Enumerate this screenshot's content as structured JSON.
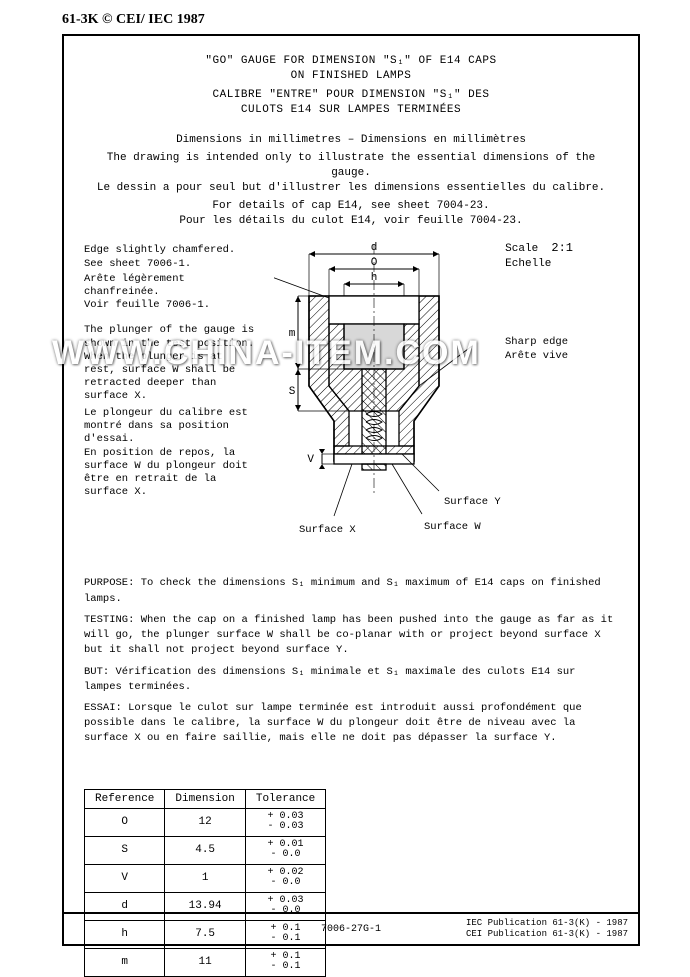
{
  "header_code": "61-3K © CEI/ IEC 1987",
  "title": {
    "en1": "\"GO\" GAUGE FOR DIMENSION \"S₁\" OF E14 CAPS",
    "en2": "ON FINISHED LAMPS",
    "fr1": "CALIBRE \"ENTRE\" POUR DIMENSION \"S₁\" DES",
    "fr2": "CULOTS E14 SUR LAMPES TERMINÉES"
  },
  "desc": {
    "dim": "Dimensions in millimetres – Dimensions en millimètres",
    "en": "The drawing is intended only to illustrate the essential dimensions of the gauge.",
    "fr": "Le dessin a pour seul but d'illustrer les dimensions essentielles du calibre.",
    "det_en": "For details of cap E14, see sheet 7004-23.",
    "det_fr": "Pour les détails du culot E14, voir feuille 7004-23."
  },
  "scale": {
    "line1": "Scale",
    "line2": "Echelle",
    "val": "2:1"
  },
  "notes": {
    "edge_en": "Edge slightly chamfered.\nSee sheet 7006-1.",
    "edge_fr": "Arête légèrement chanfreinée.\nVoir feuille 7006-1.",
    "plunger_en": "The plunger of the gauge is shown in the test position.\nWhen the plunger is at rest, surface W shall be retracted deeper than surface X.",
    "plunger_fr": "Le plongeur du calibre est montré dans sa position d'essai.\nEn position de repos, la surface W du plongeur doit être en retrait de la surface X.",
    "sharp_en": "Sharp edge",
    "sharp_fr": "Arête vive"
  },
  "surfaces": {
    "x": "Surface X",
    "w": "Surface W",
    "y": "Surface Y"
  },
  "dims": {
    "d": "d",
    "O": "O",
    "h": "h",
    "m": "m",
    "S": "S",
    "V": "V"
  },
  "purpose": {
    "p_en": "PURPOSE: To check the dimensions S₁ minimum and S₁ maximum of E14 caps on finished lamps.",
    "t_en": "TESTING: When the cap on a finished lamp has been pushed into the gauge as far as it will go, the plunger surface W shall be co-planar with or project beyond surface X but it shall not project beyond surface Y.",
    "p_fr": "BUT: Vérification des dimensions S₁ minimale et S₁ maximale des culots E14 sur lampes terminées.",
    "t_fr": "ESSAI: Lorsque le culot sur lampe terminée est introduit aussi profondément que possible dans le calibre, la surface W du plongeur doit être de niveau avec la surface X ou en faire saillie, mais elle ne doit pas dépasser la surface Y."
  },
  "table": {
    "headers": [
      "Reference",
      "Dimension",
      "Tolerance"
    ],
    "rows": [
      {
        "ref": "O",
        "dim": "12",
        "tol_p": "+ 0.03",
        "tol_n": "- 0.03"
      },
      {
        "ref": "S",
        "dim": "4.5",
        "tol_p": "+ 0.01",
        "tol_n": "- 0.0"
      },
      {
        "ref": "V",
        "dim": "1",
        "tol_p": "+ 0.02",
        "tol_n": "- 0.0"
      },
      {
        "ref": "d",
        "dim": "13.94",
        "tol_p": "+ 0.03",
        "tol_n": "- 0.0"
      },
      {
        "ref": "h",
        "dim": "7.5",
        "tol_p": "+ 0.1",
        "tol_n": "- 0.1"
      },
      {
        "ref": "m",
        "dim": "11",
        "tol_p": "+ 0.1",
        "tol_n": "- 0.1"
      }
    ]
  },
  "footer": {
    "center": "7006-27G-1",
    "right1": "IEC Publication 61-3(K) - 1987",
    "right2": "CEI Publication 61-3(K) - 1987"
  },
  "watermark": "WWW.CHINA-ITEM.COM",
  "diagram": {
    "hatch_color": "#000000",
    "background": "#ffffff",
    "line_width": 1.3
  }
}
